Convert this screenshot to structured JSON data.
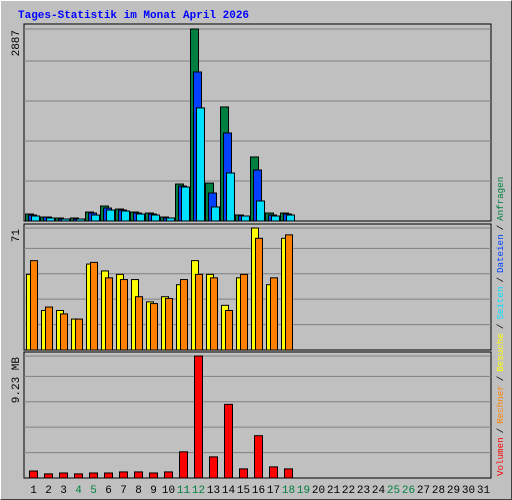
{
  "chart_data": [
    {
      "type": "bar",
      "title": "Tages-Statistik im Monat April 2026",
      "legend_separator": "/",
      "ylim": [
        0,
        2887
      ],
      "yticks": [
        2887
      ],
      "series": [
        {
          "name": "Anfragen",
          "color": "#008040",
          "values": [
            105,
            60,
            45,
            45,
            135,
            225,
            180,
            135,
            120,
            60,
            556,
            2887,
            570,
            1715,
            90,
            963,
            120,
            120,
            0,
            0,
            0,
            0,
            0,
            0,
            0,
            0,
            0,
            0,
            0,
            0,
            0
          ]
        },
        {
          "name": "Dateien",
          "color": "#0040ff",
          "values": [
            90,
            60,
            30,
            30,
            120,
            195,
            165,
            120,
            105,
            45,
            526,
            2241,
            421,
            1324,
            75,
            767,
            90,
            105,
            0,
            0,
            0,
            0,
            0,
            0,
            0,
            0,
            0,
            0,
            0,
            0,
            0
          ]
        },
        {
          "name": "Seiten",
          "color": "#00e0ff",
          "values": [
            75,
            45,
            30,
            30,
            90,
            165,
            150,
            105,
            90,
            45,
            511,
            1700,
            211,
            722,
            75,
            301,
            75,
            90,
            0,
            0,
            0,
            0,
            0,
            0,
            0,
            0,
            0,
            0,
            0,
            0,
            0
          ]
        }
      ]
    },
    {
      "type": "bar",
      "ylim": [
        0,
        71
      ],
      "yticks": [
        71
      ],
      "series": [
        {
          "name": "Besuche",
          "color": "#ffff00",
          "values": [
            44,
            23,
            23,
            18,
            50,
            46,
            44,
            41,
            28,
            31,
            38,
            52,
            44,
            26,
            42,
            71,
            38,
            65,
            0,
            0,
            0,
            0,
            0,
            0,
            0,
            0,
            0,
            0,
            0,
            0,
            0
          ]
        },
        {
          "name": "Rechner",
          "color": "#ff8000",
          "values": [
            52,
            25,
            21,
            18,
            51,
            42,
            41,
            31,
            27,
            30,
            41,
            44,
            42,
            23,
            44,
            65,
            42,
            67,
            0,
            0,
            0,
            0,
            0,
            0,
            0,
            0,
            0,
            0,
            0,
            0,
            0
          ]
        }
      ]
    },
    {
      "type": "bar",
      "ylim": [
        0,
        9.23
      ],
      "yticks": [
        {
          "value": 9.23,
          "label": "9.23 MB"
        }
      ],
      "categories": [
        "1",
        "2",
        "3",
        "4",
        "5",
        "6",
        "7",
        "8",
        "9",
        "10",
        "11",
        "12",
        "13",
        "14",
        "15",
        "16",
        "17",
        "18",
        "19",
        "20",
        "21",
        "22",
        "23",
        "24",
        "25",
        "26",
        "27",
        "28",
        "29",
        "30",
        "31"
      ],
      "category_colors": [
        "#000000",
        "#000000",
        "#000000",
        "#008040",
        "#008040",
        "#000000",
        "#000000",
        "#000000",
        "#000000",
        "#000000",
        "#008040",
        "#008040",
        "#000000",
        "#000000",
        "#000000",
        "#000000",
        "#000000",
        "#008040",
        "#008040",
        "#000000",
        "#000000",
        "#000000",
        "#000000",
        "#000000",
        "#008040",
        "#008040",
        "#000000",
        "#000000",
        "#000000",
        "#000000",
        "#000000"
      ],
      "series": [
        {
          "name": "Volumen",
          "color": "#ff0000",
          "values": [
            0.53,
            0.31,
            0.38,
            0.31,
            0.38,
            0.38,
            0.46,
            0.46,
            0.38,
            0.46,
            1.98,
            9.23,
            1.6,
            5.57,
            0.69,
            3.2,
            0.84,
            0.69,
            0,
            0,
            0,
            0,
            0,
            0,
            0,
            0,
            0,
            0,
            0,
            0,
            0
          ]
        }
      ]
    }
  ]
}
